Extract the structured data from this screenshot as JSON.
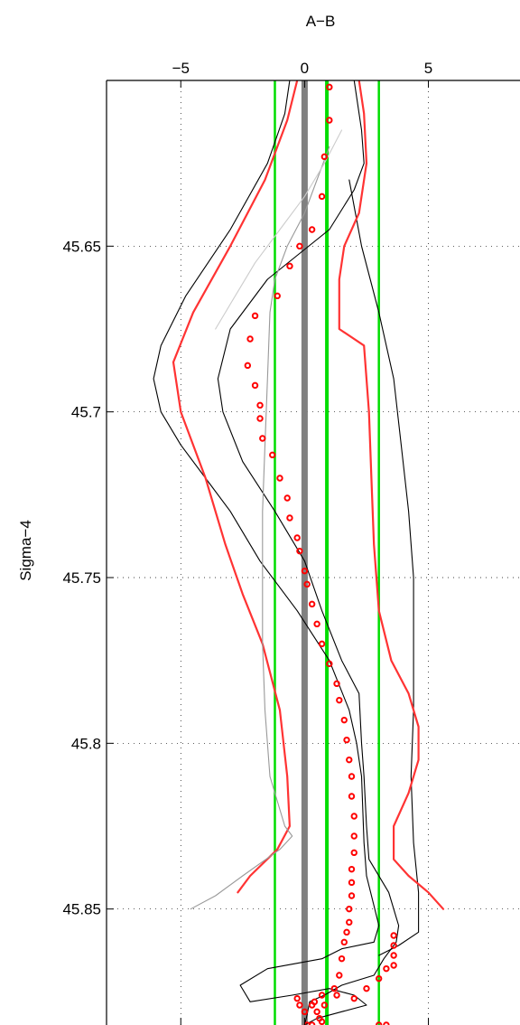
{
  "chart_data": {
    "type": "line",
    "title": "",
    "xlabel": "A−B",
    "ylabel": "Sigma−4",
    "x_axis_position": "top",
    "y_axis_reversed": true,
    "xlim": [
      -8.0,
      8.7
    ],
    "ylim": [
      45.6,
      45.885
    ],
    "x_ticks": [
      -5,
      0,
      5
    ],
    "x_tick_labels": [
      "−5",
      "0",
      "5"
    ],
    "y_ticks": [
      45.65,
      45.7,
      45.75,
      45.8,
      45.85
    ],
    "y_tick_labels": [
      "45.65",
      "45.7",
      "45.75",
      "45.8",
      "45.85"
    ],
    "grid": "dotted",
    "legend": "none",
    "colors": {
      "black": "#000000",
      "red": "#ff3333",
      "gray_thick": "#808080",
      "gray_thin": "#999999",
      "light_gray": "#cccccc",
      "green": "#00dd00",
      "marker_red": "#ff0000"
    },
    "vertical_lines": [
      {
        "x": 0,
        "color": "gray_thick",
        "width": "thick"
      },
      {
        "x": 0.9,
        "color": "green",
        "width": "thick"
      },
      {
        "x": -1.2,
        "color": "green",
        "width": "thin"
      },
      {
        "x": 3.0,
        "color": "green",
        "width": "thin"
      }
    ],
    "series": [
      {
        "style": "line",
        "color": "black",
        "width": "thin",
        "points": [
          [
            -0.6,
            45.6
          ],
          [
            -0.8,
            45.61
          ],
          [
            -1.5,
            45.625
          ],
          [
            -3.0,
            45.645
          ],
          [
            -4.8,
            45.665
          ],
          [
            -5.8,
            45.68
          ],
          [
            -6.1,
            45.69
          ],
          [
            -5.8,
            45.7
          ],
          [
            -5.0,
            45.71
          ],
          [
            -4.0,
            45.72
          ],
          [
            -3.0,
            45.73
          ],
          [
            -1.8,
            45.745
          ],
          [
            -0.3,
            45.76
          ],
          [
            1.0,
            45.775
          ],
          [
            1.8,
            45.79
          ],
          [
            2.1,
            45.8
          ],
          [
            2.3,
            45.81
          ],
          [
            2.4,
            45.83
          ],
          [
            2.5,
            45.84
          ],
          [
            3.0,
            45.855
          ],
          [
            2.8,
            45.86
          ],
          [
            1.5,
            45.862
          ],
          [
            0.7,
            45.865
          ],
          [
            -1.5,
            45.868
          ],
          [
            -2.6,
            45.873
          ],
          [
            -2.2,
            45.878
          ],
          [
            -0.5,
            45.876
          ],
          [
            1.0,
            45.874
          ],
          [
            2.0,
            45.876
          ],
          [
            2.5,
            45.879
          ],
          [
            1.5,
            45.881
          ],
          [
            0.5,
            45.883
          ],
          [
            0.0,
            45.885
          ]
        ]
      },
      {
        "style": "line",
        "color": "black",
        "width": "thin",
        "points": [
          [
            2.0,
            45.6
          ],
          [
            2.3,
            45.615
          ],
          [
            2.4,
            45.625
          ],
          [
            2.0,
            45.633
          ],
          [
            1.0,
            45.645
          ],
          [
            -1.5,
            45.66
          ],
          [
            -3.0,
            45.675
          ],
          [
            -3.5,
            45.69
          ],
          [
            -3.3,
            45.7
          ],
          [
            -2.5,
            45.715
          ],
          [
            -1.2,
            45.73
          ],
          [
            0.0,
            45.745
          ],
          [
            0.7,
            45.76
          ],
          [
            1.5,
            45.775
          ],
          [
            2.2,
            45.785
          ],
          [
            2.3,
            45.8
          ],
          [
            2.4,
            45.81
          ],
          [
            2.5,
            45.825
          ],
          [
            2.6,
            45.835
          ],
          [
            3.4,
            45.845
          ],
          [
            3.8,
            45.855
          ],
          [
            3.7,
            45.86
          ],
          [
            3.2,
            45.865
          ],
          [
            2.8,
            45.87
          ],
          [
            1.5,
            45.873
          ],
          [
            0.8,
            45.876
          ],
          [
            0.2,
            45.878
          ],
          [
            0.1,
            45.882
          ],
          [
            0.0,
            45.885
          ]
        ]
      },
      {
        "style": "line",
        "color": "black",
        "width": "thin",
        "points": [
          [
            1.8,
            45.63
          ],
          [
            2.3,
            45.65
          ],
          [
            3.0,
            45.67
          ],
          [
            3.6,
            45.69
          ],
          [
            3.9,
            45.71
          ],
          [
            4.2,
            45.73
          ],
          [
            4.4,
            45.75
          ],
          [
            4.4,
            45.77
          ],
          [
            4.4,
            45.79
          ],
          [
            4.3,
            45.81
          ],
          [
            4.4,
            45.83
          ],
          [
            4.6,
            45.845
          ],
          [
            4.6,
            45.857
          ],
          [
            3.8,
            45.861
          ],
          [
            3.0,
            45.864
          ]
        ]
      },
      {
        "style": "line",
        "color": "red",
        "width": "medium",
        "points": [
          [
            -0.3,
            45.6
          ],
          [
            -0.7,
            45.612
          ],
          [
            -1.6,
            45.63
          ],
          [
            -3.0,
            45.65
          ],
          [
            -4.5,
            45.67
          ],
          [
            -5.3,
            45.685
          ],
          [
            -5.0,
            45.7
          ],
          [
            -4.0,
            45.72
          ],
          [
            -3.2,
            45.74
          ],
          [
            -2.5,
            45.755
          ],
          [
            -1.7,
            45.77
          ],
          [
            -1.0,
            45.79
          ],
          [
            -0.7,
            45.81
          ],
          [
            -0.6,
            45.825
          ],
          [
            -1.1,
            45.832
          ],
          [
            -2.2,
            45.84
          ],
          [
            -2.7,
            45.845
          ]
        ]
      },
      {
        "style": "line",
        "color": "red",
        "width": "medium",
        "points": [
          [
            2.2,
            45.6
          ],
          [
            2.4,
            45.61
          ],
          [
            2.5,
            45.625
          ],
          [
            2.2,
            45.64
          ],
          [
            1.6,
            45.65
          ],
          [
            1.4,
            45.66
          ],
          [
            1.4,
            45.675
          ],
          [
            2.4,
            45.68
          ],
          [
            2.6,
            45.7
          ],
          [
            2.7,
            45.72
          ],
          [
            2.8,
            45.74
          ],
          [
            3.0,
            45.76
          ],
          [
            3.5,
            45.775
          ],
          [
            4.2,
            45.785
          ],
          [
            4.6,
            45.795
          ],
          [
            4.6,
            45.805
          ],
          [
            4.2,
            45.815
          ],
          [
            3.6,
            45.825
          ],
          [
            3.6,
            45.835
          ],
          [
            4.2,
            45.84
          ],
          [
            5.0,
            45.845
          ],
          [
            5.6,
            45.85
          ]
        ]
      },
      {
        "style": "line",
        "color": "gray_thin",
        "width": "thin",
        "points": [
          [
            1.0,
            45.62
          ],
          [
            0.5,
            45.63
          ],
          [
            0.0,
            45.64
          ],
          [
            -0.7,
            45.65
          ],
          [
            -1.2,
            45.66
          ],
          [
            -1.4,
            45.67
          ],
          [
            -1.5,
            45.69
          ],
          [
            -1.6,
            45.71
          ],
          [
            -1.7,
            45.73
          ],
          [
            -1.7,
            45.75
          ],
          [
            -1.7,
            45.77
          ],
          [
            -1.6,
            45.79
          ],
          [
            -1.4,
            45.81
          ],
          [
            -0.8,
            45.825
          ],
          [
            -0.5,
            45.828
          ],
          [
            -1.0,
            45.832
          ],
          [
            -2.5,
            45.84
          ],
          [
            -3.6,
            45.846
          ],
          [
            -4.6,
            45.85
          ]
        ]
      },
      {
        "style": "line",
        "color": "light_gray",
        "width": "thin",
        "points": [
          [
            1.5,
            45.615
          ],
          [
            0.8,
            45.625
          ],
          [
            0.0,
            45.635
          ],
          [
            -1.0,
            45.645
          ],
          [
            -2.0,
            45.655
          ],
          [
            -2.8,
            45.665
          ],
          [
            -3.6,
            45.675
          ]
        ]
      },
      {
        "style": "markers",
        "color": "marker_red",
        "marker": "circle",
        "points": [
          [
            1.0,
            45.602
          ],
          [
            1.0,
            45.612
          ],
          [
            0.8,
            45.623
          ],
          [
            0.7,
            45.635
          ],
          [
            0.3,
            45.645
          ],
          [
            -0.2,
            45.65
          ],
          [
            -0.6,
            45.656
          ],
          [
            -1.1,
            45.665
          ],
          [
            -2.0,
            45.671
          ],
          [
            -2.2,
            45.678
          ],
          [
            -2.3,
            45.686
          ],
          [
            -2.0,
            45.692
          ],
          [
            -1.8,
            45.698
          ],
          [
            -1.8,
            45.702
          ],
          [
            -1.7,
            45.708
          ],
          [
            -1.3,
            45.713
          ],
          [
            -1.0,
            45.72
          ],
          [
            -0.7,
            45.726
          ],
          [
            -0.6,
            45.732
          ],
          [
            -0.3,
            45.738
          ],
          [
            -0.2,
            45.742
          ],
          [
            0.0,
            45.748
          ],
          [
            0.1,
            45.752
          ],
          [
            0.3,
            45.758
          ],
          [
            0.5,
            45.764
          ],
          [
            0.7,
            45.77
          ],
          [
            1.0,
            45.776
          ],
          [
            1.3,
            45.782
          ],
          [
            1.4,
            45.787
          ],
          [
            1.6,
            45.793
          ],
          [
            1.7,
            45.799
          ],
          [
            1.8,
            45.805
          ],
          [
            1.9,
            45.81
          ],
          [
            1.9,
            45.816
          ],
          [
            2.0,
            45.822
          ],
          [
            2.0,
            45.828
          ],
          [
            2.0,
            45.833
          ],
          [
            1.9,
            45.838
          ],
          [
            1.9,
            45.842
          ],
          [
            1.9,
            45.846
          ],
          [
            1.8,
            45.85
          ],
          [
            1.8,
            45.854
          ],
          [
            1.7,
            45.857
          ],
          [
            1.6,
            45.86
          ],
          [
            1.5,
            45.865
          ],
          [
            1.4,
            45.87
          ],
          [
            1.2,
            45.874
          ],
          [
            0.7,
            45.876
          ],
          [
            0.4,
            45.878
          ],
          [
            -0.3,
            45.877
          ],
          [
            -0.2,
            45.879
          ],
          [
            0.0,
            45.881
          ],
          [
            0.3,
            45.879
          ],
          [
            0.5,
            45.881
          ],
          [
            0.6,
            45.883
          ],
          [
            0.7,
            45.884
          ],
          [
            0.3,
            45.885
          ],
          [
            0.1,
            45.885
          ],
          [
            3.6,
            45.858
          ],
          [
            3.6,
            45.861
          ],
          [
            3.6,
            45.864
          ],
          [
            3.6,
            45.867
          ],
          [
            3.3,
            45.868
          ],
          [
            3.0,
            45.871
          ],
          [
            2.5,
            45.874
          ],
          [
            2.0,
            45.877
          ],
          [
            1.3,
            45.876
          ],
          [
            0.8,
            45.879
          ],
          [
            3.0,
            45.885
          ],
          [
            3.3,
            45.885
          ]
        ]
      }
    ]
  }
}
